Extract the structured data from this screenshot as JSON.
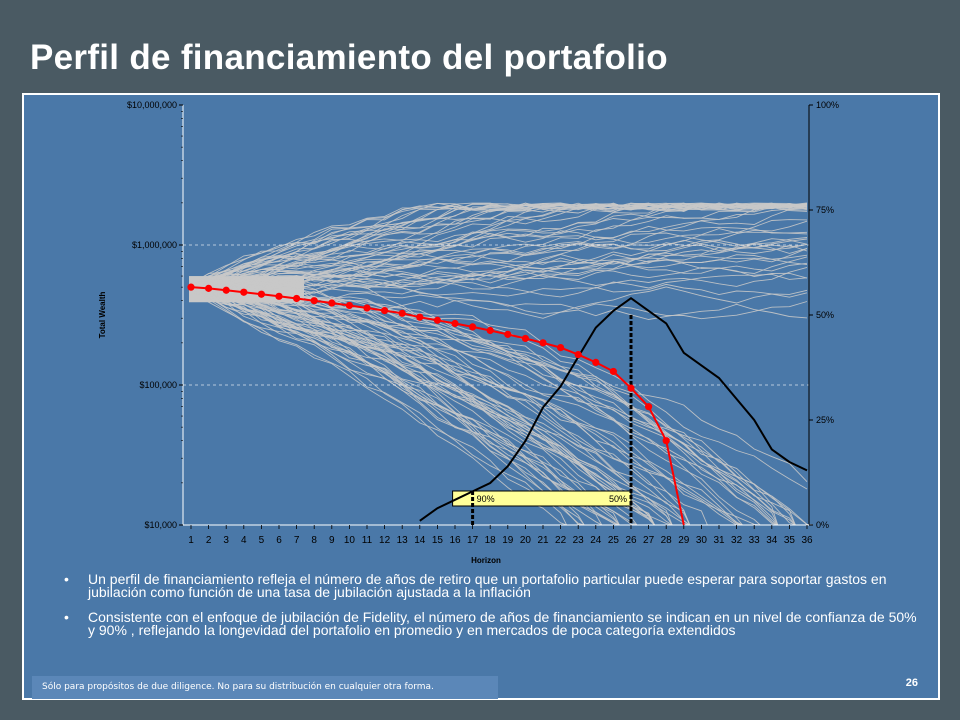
{
  "slide": {
    "title": "Perfil de financiamiento del portafolio",
    "page_number": "26",
    "footer": "Sólo para propósitos de due diligence.  No para su distribución en cualquier otra forma."
  },
  "bullets": [
    "Un perfil de financiamiento refleja el número de años de retiro que un portafolio particular puede esperar para soportar gastos en jubilación como función de una tasa de jubilación ajustada a la inflación",
    "Consistente con el enfoque de jubilación de Fidelity, el número de años de financiamiento se indican en un nivel de confianza de  50% y 90% , reflejando la longevidad del portafolio en promedio y en mercados de poca categoría extendidos"
  ],
  "chart_data": {
    "type": "line",
    "xlabel": "Horizon",
    "ylabel": "Total Wealth",
    "y_scale": "log",
    "ylim": [
      10000,
      10000000
    ],
    "y_ticks": [
      "$10,000",
      "$100,000",
      "$1,000,000",
      "$10,000,000"
    ],
    "y2lim": [
      0,
      100
    ],
    "y2_ticks": [
      "0%",
      "25%",
      "50%",
      "75%",
      "100%"
    ],
    "x": [
      1,
      2,
      3,
      4,
      5,
      6,
      7,
      8,
      9,
      10,
      11,
      12,
      13,
      14,
      15,
      16,
      17,
      18,
      19,
      20,
      21,
      22,
      23,
      24,
      25,
      26,
      27,
      28,
      29,
      30,
      31,
      32,
      33,
      34,
      35,
      36
    ],
    "series": [
      {
        "kind": "median_wealth",
        "color": "#ff0000",
        "x": [
          1,
          2,
          3,
          4,
          5,
          6,
          7,
          8,
          9,
          10,
          11,
          12,
          13,
          14,
          15,
          16,
          17,
          18,
          19,
          20,
          21,
          22,
          23,
          24,
          25,
          26,
          27,
          28,
          29
        ],
        "values": [
          500000,
          490000,
          475000,
          460000,
          445000,
          430000,
          415000,
          400000,
          385000,
          370000,
          355000,
          340000,
          325000,
          305000,
          290000,
          275000,
          260000,
          245000,
          230000,
          215000,
          200000,
          185000,
          165000,
          145000,
          125000,
          95000,
          70000,
          40000,
          10000
        ]
      },
      {
        "kind": "percent_right_axis",
        "color": "#000000",
        "x": [
          14,
          15,
          16,
          17,
          18,
          19,
          20,
          21,
          22,
          23,
          24,
          25,
          26,
          27,
          28,
          29,
          30,
          31,
          32,
          33,
          34,
          35,
          36
        ],
        "values": [
          1,
          4,
          6,
          8,
          10,
          14,
          20,
          28,
          33,
          40,
          47,
          51,
          54,
          51,
          48,
          41,
          38,
          35,
          30,
          25,
          18,
          15,
          13
        ]
      }
    ],
    "simulation_paths_color": "#c8c8c8",
    "markers": [
      {
        "label": "90%",
        "x": 17
      },
      {
        "label": "50%",
        "x": 26
      }
    ],
    "grid": "horizontal dashed at major ticks"
  }
}
